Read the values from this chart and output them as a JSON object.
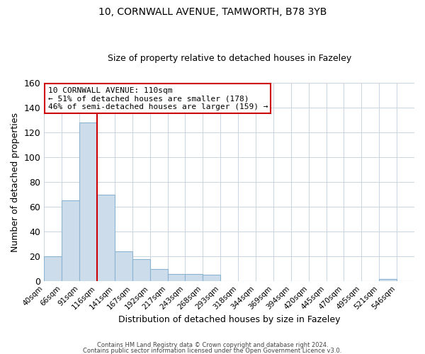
{
  "title_line1": "10, CORNWALL AVENUE, TAMWORTH, B78 3YB",
  "title_line2": "Size of property relative to detached houses in Fazeley",
  "xlabel": "Distribution of detached houses by size in Fazeley",
  "ylabel": "Number of detached properties",
  "bin_labels": [
    "40sqm",
    "66sqm",
    "91sqm",
    "116sqm",
    "141sqm",
    "167sqm",
    "192sqm",
    "217sqm",
    "243sqm",
    "268sqm",
    "293sqm",
    "318sqm",
    "344sqm",
    "369sqm",
    "394sqm",
    "420sqm",
    "445sqm",
    "470sqm",
    "495sqm",
    "521sqm",
    "546sqm"
  ],
  "bar_values": [
    20,
    65,
    128,
    70,
    24,
    18,
    10,
    6,
    6,
    5,
    0,
    0,
    0,
    0,
    0,
    0,
    0,
    0,
    0,
    2,
    0
  ],
  "bar_color": "#ccdceb",
  "bar_edge_color": "#8ab4d0",
  "property_line_x": 3,
  "property_line_color": "#cc0000",
  "annotation_text_line1": "10 CORNWALL AVENUE: 110sqm",
  "annotation_text_line2": "← 51% of detached houses are smaller (178)",
  "annotation_text_line3": "46% of semi-detached houses are larger (159) →",
  "annotation_box_color": "#ffffff",
  "annotation_border_color": "#cc0000",
  "ylim": [
    0,
    160
  ],
  "yticks": [
    0,
    20,
    40,
    60,
    80,
    100,
    120,
    140,
    160
  ],
  "grid_color": "#c8d4e0",
  "footer_line1": "Contains HM Land Registry data © Crown copyright and database right 2024.",
  "footer_line2": "Contains public sector information licensed under the Open Government Licence v3.0."
}
